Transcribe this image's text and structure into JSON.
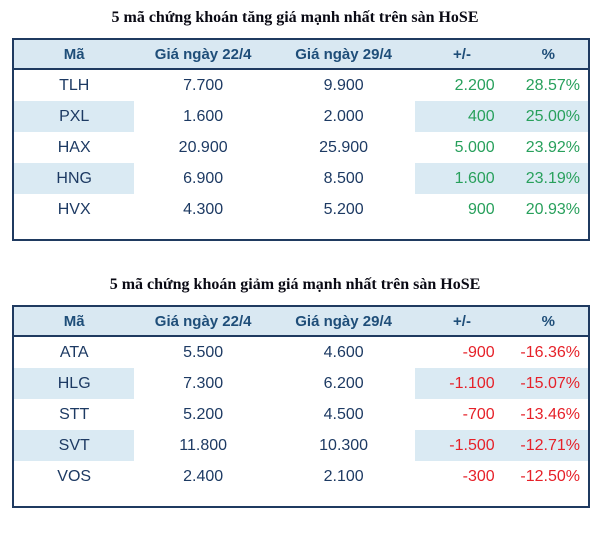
{
  "colors": {
    "gain_text": "#28a05c",
    "loss_text": "#e62129",
    "header_text": "#1f4e79",
    "body_text": "#1d3a63",
    "header_bg": "#d9e8f2",
    "stripe_bg": "#daeaf3",
    "table_border": "#1f3a60",
    "page_bg": "#ffffff"
  },
  "tables": [
    {
      "title": "5 mã chứng khoán tăng giá mạnh nhất trên sàn HoSE",
      "columns": [
        "Mã",
        "Giá ngày 22/4",
        "Giá ngày 29/4",
        "+/-",
        "%"
      ],
      "rows": [
        {
          "code": "TLH",
          "price_22_4": "7.700",
          "price_29_4": "9.900",
          "change": "2.200",
          "percent": "28.57%"
        },
        {
          "code": "PXL",
          "price_22_4": "1.600",
          "price_29_4": "2.000",
          "change": "400",
          "percent": "25.00%"
        },
        {
          "code": "HAX",
          "price_22_4": "20.900",
          "price_29_4": "25.900",
          "change": "5.000",
          "percent": "23.92%"
        },
        {
          "code": "HNG",
          "price_22_4": "6.900",
          "price_29_4": "8.500",
          "change": "1.600",
          "percent": "23.19%"
        },
        {
          "code": "HVX",
          "price_22_4": "4.300",
          "price_29_4": "5.200",
          "change": "900",
          "percent": "20.93%"
        }
      ]
    },
    {
      "title": "5 mã chứng khoán giảm giá mạnh nhất trên sàn HoSE",
      "columns": [
        "Mã",
        "Giá ngày 22/4",
        "Giá ngày 29/4",
        "+/-",
        "%"
      ],
      "rows": [
        {
          "code": "ATA",
          "price_22_4": "5.500",
          "price_29_4": "4.600",
          "change": "-900",
          "percent": "-16.36%"
        },
        {
          "code": "HLG",
          "price_22_4": "7.300",
          "price_29_4": "6.200",
          "change": "-1.100",
          "percent": "-15.07%"
        },
        {
          "code": "STT",
          "price_22_4": "5.200",
          "price_29_4": "4.500",
          "change": "-700",
          "percent": "-13.46%"
        },
        {
          "code": "SVT",
          "price_22_4": "11.800",
          "price_29_4": "10.300",
          "change": "-1.500",
          "percent": "-12.71%"
        },
        {
          "code": "VOS",
          "price_22_4": "2.400",
          "price_29_4": "2.100",
          "change": "-300",
          "percent": "-12.50%"
        }
      ]
    }
  ]
}
